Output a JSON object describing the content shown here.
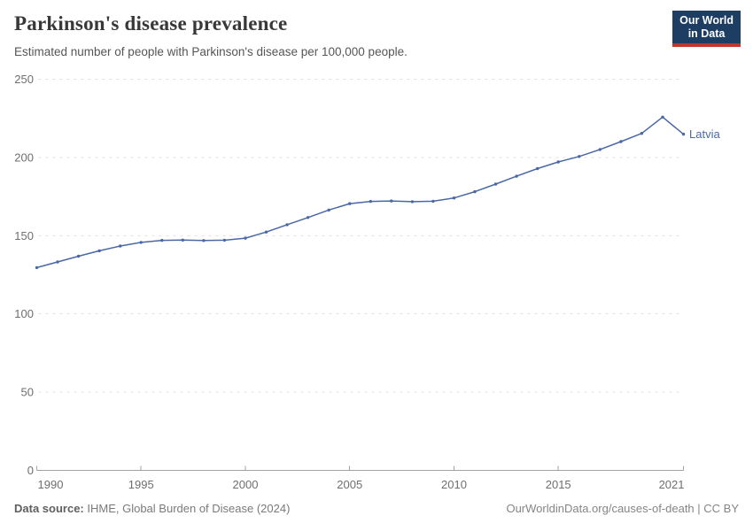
{
  "header": {
    "title": "Parkinson's disease prevalence",
    "subtitle": "Estimated number of people with Parkinson's disease per 100,000 people.",
    "logo": {
      "line1": "Our World",
      "line2": "in Data",
      "bg_color": "#1d3d63",
      "accent_color": "#c0362c"
    }
  },
  "chart_data": {
    "type": "line",
    "title": "Parkinson's disease prevalence",
    "xlabel": "",
    "ylabel": "",
    "ylim": [
      0,
      250
    ],
    "y_ticks": [
      0,
      50,
      100,
      150,
      200,
      250
    ],
    "x_ticks": [
      1990,
      1995,
      2000,
      2005,
      2010,
      2015,
      2021
    ],
    "x_range": [
      1990,
      2021
    ],
    "grid": true,
    "legend_position": "end-of-line-label",
    "series": [
      {
        "name": "Latvia",
        "color": "#4a68a5",
        "x": [
          1990,
          1991,
          1992,
          1993,
          1994,
          1995,
          1996,
          1997,
          1998,
          1999,
          2000,
          2001,
          2002,
          2003,
          2004,
          2005,
          2006,
          2007,
          2008,
          2009,
          2010,
          2011,
          2012,
          2013,
          2014,
          2015,
          2016,
          2017,
          2018,
          2019,
          2020,
          2021
        ],
        "values": [
          129.6,
          133.2,
          136.9,
          140.3,
          143.4,
          145.7,
          147.0,
          147.2,
          146.9,
          147.1,
          148.4,
          152.3,
          157.0,
          161.6,
          166.4,
          170.5,
          171.9,
          172.2,
          171.7,
          172.0,
          174.1,
          178.1,
          183.0,
          188.0,
          192.9,
          197.1,
          200.6,
          205.1,
          210.1,
          215.4,
          225.8,
          214.9
        ]
      }
    ]
  },
  "footer": {
    "data_source_label": "Data source:",
    "data_source_value": "IHME, Global Burden of Disease (2024)",
    "credit": "OurWorldinData.org/causes-of-death | CC BY"
  }
}
